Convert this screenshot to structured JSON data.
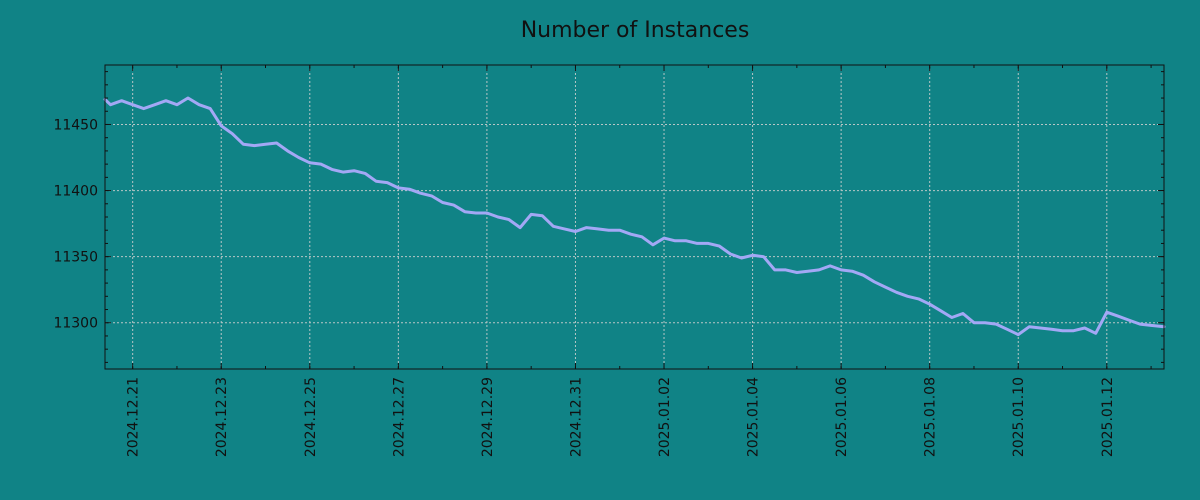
{
  "chart_data": {
    "type": "line",
    "title": "Number of Instances",
    "xlabel": "",
    "ylabel": "",
    "xlim": [
      "2024-12-20T09:00",
      "2025-01-13T07:00"
    ],
    "ylim": [
      11265,
      11495
    ],
    "x_ticks": [
      "2024.12.21",
      "2024.12.23",
      "2024.12.25",
      "2024.12.27",
      "2024.12.29",
      "2024.12.31",
      "2025.01.02",
      "2025.01.04",
      "2025.01.06",
      "2025.01.08",
      "2025.01.10",
      "2025.01.12"
    ],
    "y_ticks": [
      11300,
      11350,
      11400,
      11450
    ],
    "grid": true,
    "colors": {
      "background": "#108386",
      "line": "#A3A8F5",
      "grid": "#B7C6C6",
      "frame": "#111111"
    },
    "series": [
      {
        "x": [
          "2024-12-20T09:00",
          "2024-12-20T12:00",
          "2024-12-20T18:00",
          "2024-12-21T00:00",
          "2024-12-21T06:00",
          "2024-12-21T12:00",
          "2024-12-21T18:00",
          "2024-12-22T00:00",
          "2024-12-22T06:00",
          "2024-12-22T12:00",
          "2024-12-22T18:00",
          "2024-12-23T00:00",
          "2024-12-23T06:00",
          "2024-12-23T12:00",
          "2024-12-23T18:00",
          "2024-12-24T00:00",
          "2024-12-24T06:00",
          "2024-12-24T12:00",
          "2024-12-24T18:00",
          "2024-12-25T00:00",
          "2024-12-25T06:00",
          "2024-12-25T12:00",
          "2024-12-25T18:00",
          "2024-12-26T00:00",
          "2024-12-26T06:00",
          "2024-12-26T12:00",
          "2024-12-26T18:00",
          "2024-12-27T00:00",
          "2024-12-27T06:00",
          "2024-12-27T12:00",
          "2024-12-27T18:00",
          "2024-12-28T00:00",
          "2024-12-28T06:00",
          "2024-12-28T12:00",
          "2024-12-28T18:00",
          "2024-12-29T00:00",
          "2024-12-29T06:00",
          "2024-12-29T12:00",
          "2024-12-29T18:00",
          "2024-12-30T00:00",
          "2024-12-30T06:00",
          "2024-12-30T12:00",
          "2024-12-30T18:00",
          "2024-12-31T00:00",
          "2024-12-31T06:00",
          "2024-12-31T12:00",
          "2024-12-31T18:00",
          "2025-01-01T00:00",
          "2025-01-01T06:00",
          "2025-01-01T12:00",
          "2025-01-01T18:00",
          "2025-01-02T00:00",
          "2025-01-02T06:00",
          "2025-01-02T12:00",
          "2025-01-02T18:00",
          "2025-01-03T00:00",
          "2025-01-03T06:00",
          "2025-01-03T12:00",
          "2025-01-03T18:00",
          "2025-01-04T00:00",
          "2025-01-04T06:00",
          "2025-01-04T12:00",
          "2025-01-04T18:00",
          "2025-01-05T00:00",
          "2025-01-05T06:00",
          "2025-01-05T12:00",
          "2025-01-05T18:00",
          "2025-01-06T00:00",
          "2025-01-06T06:00",
          "2025-01-06T12:00",
          "2025-01-06T18:00",
          "2025-01-07T00:00",
          "2025-01-07T06:00",
          "2025-01-07T12:00",
          "2025-01-07T18:00",
          "2025-01-08T00:00",
          "2025-01-08T06:00",
          "2025-01-08T12:00",
          "2025-01-08T18:00",
          "2025-01-09T00:00",
          "2025-01-09T06:00",
          "2025-01-09T12:00",
          "2025-01-09T18:00",
          "2025-01-10T00:00",
          "2025-01-10T06:00",
          "2025-01-10T12:00",
          "2025-01-10T18:00",
          "2025-01-11T00:00",
          "2025-01-11T06:00",
          "2025-01-11T12:00",
          "2025-01-11T18:00",
          "2025-01-12T00:00",
          "2025-01-12T06:00",
          "2025-01-12T12:00",
          "2025-01-12T18:00",
          "2025-01-13T00:00",
          "2025-01-13T07:00"
        ],
        "y": [
          11469,
          11465,
          11468,
          11465,
          11462,
          11465,
          11468,
          11465,
          11470,
          11465,
          11462,
          11449,
          11443,
          11435,
          11434,
          11435,
          11436,
          11430,
          11425,
          11421,
          11420,
          11416,
          11414,
          11415,
          11413,
          11407,
          11406,
          11402,
          11401,
          11398,
          11396,
          11391,
          11389,
          11384,
          11383,
          11383,
          11380,
          11378,
          11372,
          11382,
          11381,
          11373,
          11371,
          11369,
          11372,
          11371,
          11370,
          11370,
          11367,
          11365,
          11359,
          11364,
          11362,
          11362,
          11360,
          11360,
          11358,
          11352,
          11349,
          11351,
          11350,
          11340,
          11340,
          11338,
          11339,
          11340,
          11343,
          11340,
          11339,
          11336,
          11331,
          11327,
          11323,
          11320,
          11318,
          11314,
          11309,
          11304,
          11307,
          11300,
          11300,
          11299,
          11295,
          11291,
          11297,
          11296,
          11295,
          11294,
          11294,
          11296,
          11292,
          11308,
          11305,
          11302,
          11299,
          11298,
          11297
        ]
      }
    ]
  }
}
